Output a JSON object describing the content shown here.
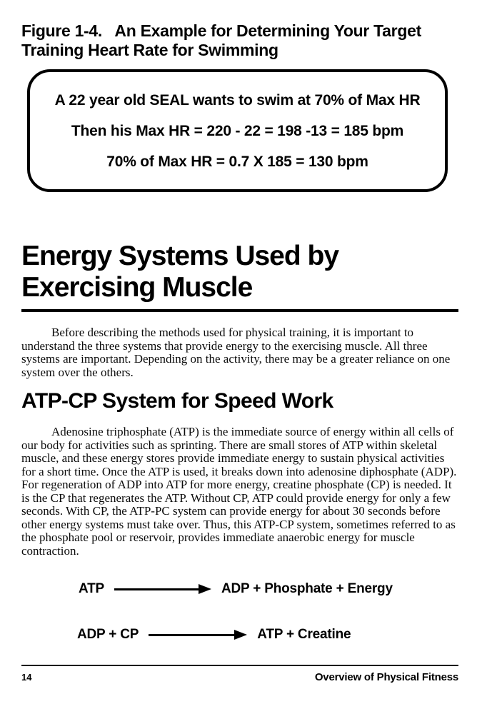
{
  "figure": {
    "title": "Figure 1-4.   An Example for Determining Your Target\nTraining Heart Rate for Swimming",
    "box_lines": [
      "A 22 year old SEAL wants to swim at 70% of Max HR",
      "Then his Max HR = 220 - 22 = 198 -13 = 185 bpm",
      "70% of Max HR = 0.7 X 185 = 130 bpm"
    ]
  },
  "section": {
    "heading_lines": [
      "Energy Systems Used by",
      "Exercising Muscle"
    ],
    "intro": "Before describing the methods used for physical training, it is important to understand the three systems that provide energy to the exercising muscle. All three systems are important. Depending on the activity, there may be a greater reliance on one system over the others.",
    "subsection": {
      "heading": "ATP-CP System for Speed Work",
      "body": "Adenosine triphosphate (ATP) is the immediate source of energy within all cells of our body for activities such as sprinting. There are small stores of ATP within skeletal muscle, and these energy stores provide immediate energy to sustain physical activities for a short time. Once the ATP is used, it breaks down into adenosine diphosphate (ADP). For regeneration of ADP into ATP for more energy, creatine phosphate (CP) is needed. It is the CP that regenerates the ATP. Without CP, ATP could provide energy for only a few seconds. With CP, the ATP-PC system can provide energy for about 30 seconds before other energy systems must take over. Thus, this ATP-CP system, sometimes referred to as the phosphate pool or reservoir, provides immediate anaerobic energy for muscle contraction."
    },
    "equations": [
      {
        "left": "ATP",
        "right": "ADP + Phosphate + Energy"
      },
      {
        "left": "ADP + CP",
        "right": "ATP + Creatine"
      }
    ]
  },
  "footer": {
    "page_number": "14",
    "running_title": "Overview of Physical Fitness"
  },
  "colors": {
    "ink": "#000000",
    "paper": "#ffffff"
  }
}
